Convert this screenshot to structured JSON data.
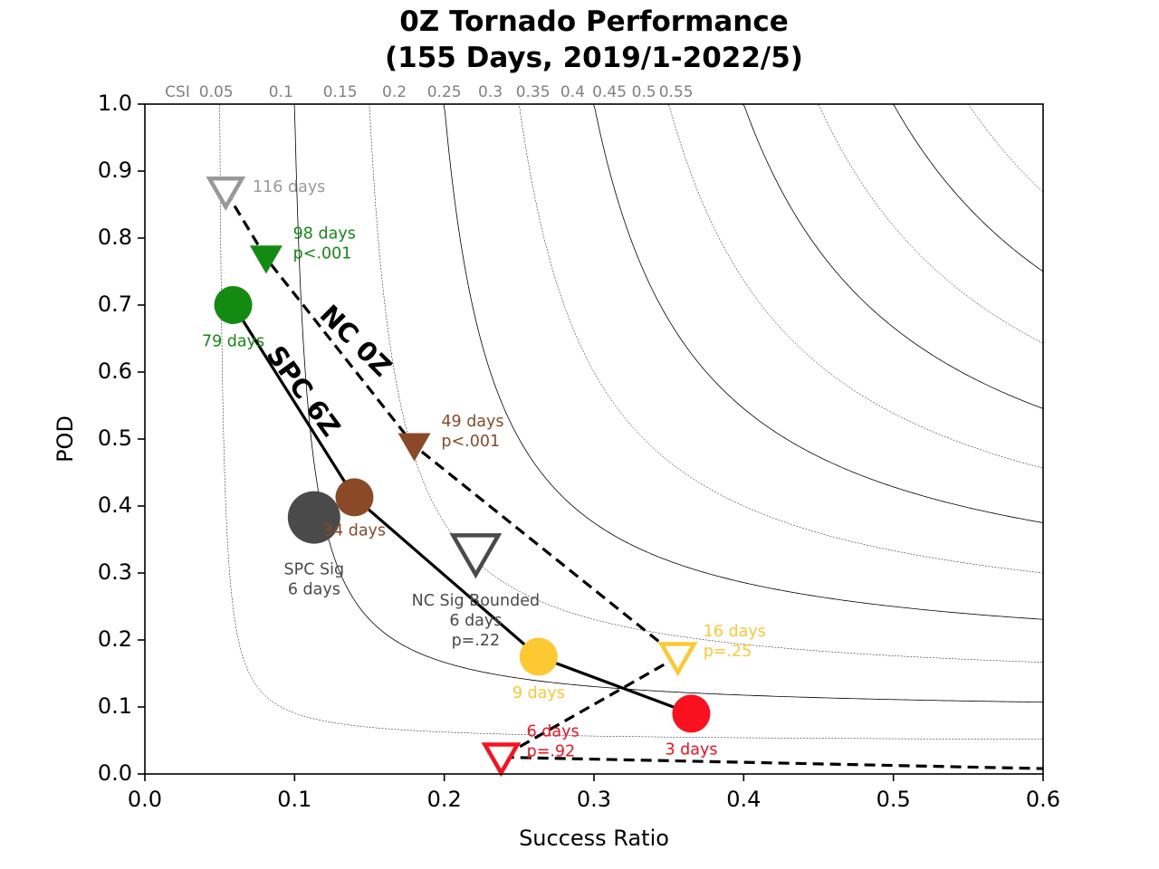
{
  "chart_data": {
    "type": "scatter",
    "title": [
      "0Z Tornado Performance",
      "(155 Days, 2019/1-2022/5)"
    ],
    "xlabel": "Success Ratio",
    "ylabel": "POD",
    "xlim": [
      0,
      0.6
    ],
    "ylim": [
      0,
      1.0
    ],
    "x_ticks": [
      "0.0",
      "0.1",
      "0.2",
      "0.3",
      "0.4",
      "0.5",
      "0.6"
    ],
    "y_ticks": [
      "0.0",
      "0.1",
      "0.2",
      "0.3",
      "0.4",
      "0.5",
      "0.6",
      "0.7",
      "0.8",
      "0.9",
      "1.0"
    ],
    "csi": {
      "prefix": "CSI",
      "values": [
        0.05,
        0.1,
        0.15,
        0.2,
        0.25,
        0.3,
        0.35,
        0.4,
        0.45,
        0.5,
        0.55
      ],
      "labels": [
        "0.05",
        "0.1",
        "0.15",
        "0.2",
        "0.25",
        "0.3",
        "0.35",
        "0.4",
        "0.45",
        "0.5",
        "0.55"
      ]
    },
    "lines": [
      {
        "label": "SPC 6Z",
        "style": "solid",
        "label_pos": [
          0.105,
          0.57
        ],
        "label_angle": 54,
        "points": [
          [
            0.059,
            0.7
          ],
          [
            0.14,
            0.413
          ],
          [
            0.263,
            0.175
          ],
          [
            0.365,
            0.09
          ]
        ]
      },
      {
        "label": "NC 0Z",
        "style": "dashed",
        "label_pos": [
          0.14,
          0.645
        ],
        "label_angle": 45,
        "points": [
          [
            0.054,
            0.87
          ],
          [
            0.081,
            0.77
          ],
          [
            0.18,
            0.49
          ],
          [
            0.356,
            0.175
          ],
          [
            0.238,
            0.025
          ],
          [
            0.6,
            0.008
          ]
        ]
      }
    ],
    "markers": [
      {
        "shape": "triangle-open",
        "color": "#999999",
        "x": 0.054,
        "y": 0.87,
        "size": 18,
        "labels": [
          "116 days"
        ],
        "label_anchor": "start",
        "label_pos": [
          0.072,
          0.876
        ]
      },
      {
        "shape": "triangle-filled",
        "color": "#138a12",
        "x": 0.081,
        "y": 0.77,
        "size": 18,
        "labels": [
          "98 days",
          "p<.001"
        ],
        "label_anchor": "start",
        "label_pos": [
          0.099,
          0.806
        ]
      },
      {
        "shape": "circle",
        "color": "#138a12",
        "x": 0.059,
        "y": 0.7,
        "size": 21,
        "labels": [
          "79 days"
        ],
        "label_anchor": "middle",
        "label_pos": [
          0.059,
          0.645
        ]
      },
      {
        "shape": "triangle-filled",
        "color": "#8a4a28",
        "x": 0.18,
        "y": 0.49,
        "size": 18,
        "labels": [
          "49 days",
          "p<.001"
        ],
        "label_anchor": "start",
        "label_pos": [
          0.198,
          0.526
        ]
      },
      {
        "shape": "circle",
        "color": "#8a4a28",
        "x": 0.14,
        "y": 0.413,
        "size": 21,
        "labels": [
          "34 days"
        ],
        "label_anchor": "middle",
        "label_pos": [
          0.14,
          0.363
        ]
      },
      {
        "shape": "circle",
        "color": "#4a4a4a",
        "x": 0.113,
        "y": 0.383,
        "size": 29,
        "labels": [
          "SPC Sig",
          "6 days"
        ],
        "label_anchor": "middle",
        "label_pos": [
          0.113,
          0.305
        ]
      },
      {
        "shape": "triangle-open",
        "color": "#4a4a4a",
        "x": 0.221,
        "y": 0.33,
        "size": 25,
        "labels": [
          "NC Sig Bounded",
          "6 days",
          "p=.22"
        ],
        "label_anchor": "middle",
        "label_pos": [
          0.221,
          0.258
        ]
      },
      {
        "shape": "circle",
        "color": "#fcc933",
        "x": 0.263,
        "y": 0.175,
        "size": 21,
        "labels": [
          "9 days"
        ],
        "label_anchor": "middle",
        "label_pos": [
          0.263,
          0.12
        ]
      },
      {
        "shape": "triangle-open",
        "color": "#fcc933",
        "x": 0.356,
        "y": 0.175,
        "size": 18,
        "labels": [
          "16 days",
          "p=.25"
        ],
        "label_anchor": "start",
        "label_pos": [
          0.373,
          0.212
        ]
      },
      {
        "shape": "circle",
        "color": "#fa101e",
        "x": 0.365,
        "y": 0.09,
        "size": 21,
        "labels": [
          "3 days"
        ],
        "label_anchor": "middle",
        "label_pos": [
          0.365,
          0.036
        ]
      },
      {
        "shape": "triangle-open",
        "color": "#fa101e",
        "x": 0.238,
        "y": 0.025,
        "size": 18,
        "labels": [
          "6 days",
          "p=.92"
        ],
        "label_anchor": "start",
        "label_pos": [
          0.255,
          0.063
        ]
      }
    ],
    "grid": false,
    "legend": "none"
  }
}
